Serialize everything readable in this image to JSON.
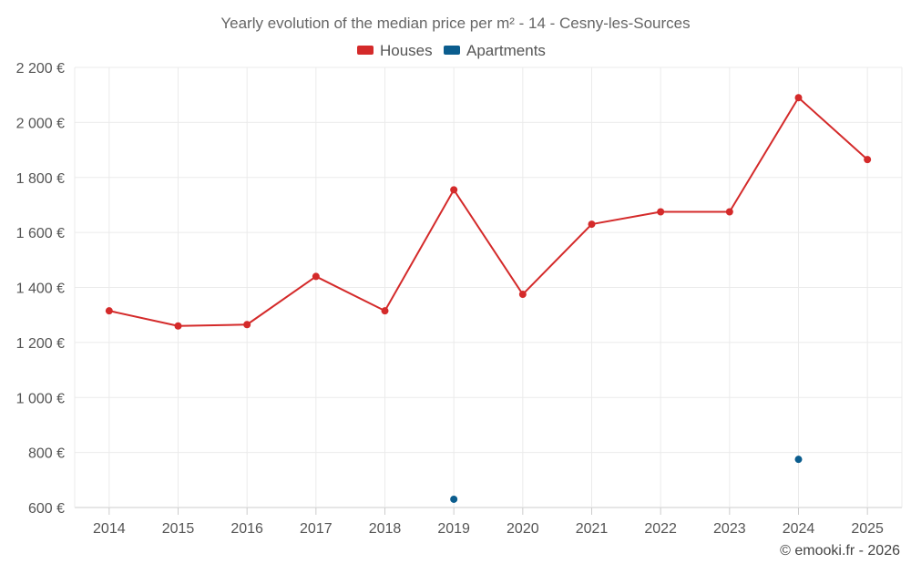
{
  "chart_data": {
    "type": "line",
    "title": "Yearly evolution of the median price per m² - 14 - Cesny-les-Sources",
    "categories": [
      "2014",
      "2015",
      "2016",
      "2017",
      "2018",
      "2019",
      "2020",
      "2021",
      "2022",
      "2023",
      "2024",
      "2025"
    ],
    "series": [
      {
        "name": "Houses",
        "color": "#d42a2a",
        "values": [
          1315,
          1260,
          1265,
          1440,
          1315,
          1755,
          1375,
          1630,
          1675,
          1675,
          2090,
          1865
        ]
      },
      {
        "name": "Apartments",
        "color": "#0b5d8e",
        "values": [
          null,
          null,
          null,
          null,
          null,
          630,
          null,
          null,
          null,
          null,
          775,
          null
        ]
      }
    ],
    "ylim": [
      600,
      2200
    ],
    "yticks": [
      600,
      800,
      1000,
      1200,
      1400,
      1600,
      1800,
      2000,
      2200
    ],
    "ytick_labels": [
      "600 €",
      "800 €",
      "1 000 €",
      "1 200 €",
      "1 400 €",
      "1 600 €",
      "1 800 €",
      "2 000 €",
      "2 200 €"
    ],
    "grid": true,
    "legend": "top-center"
  },
  "credit": "© emooki.fr - 2026"
}
